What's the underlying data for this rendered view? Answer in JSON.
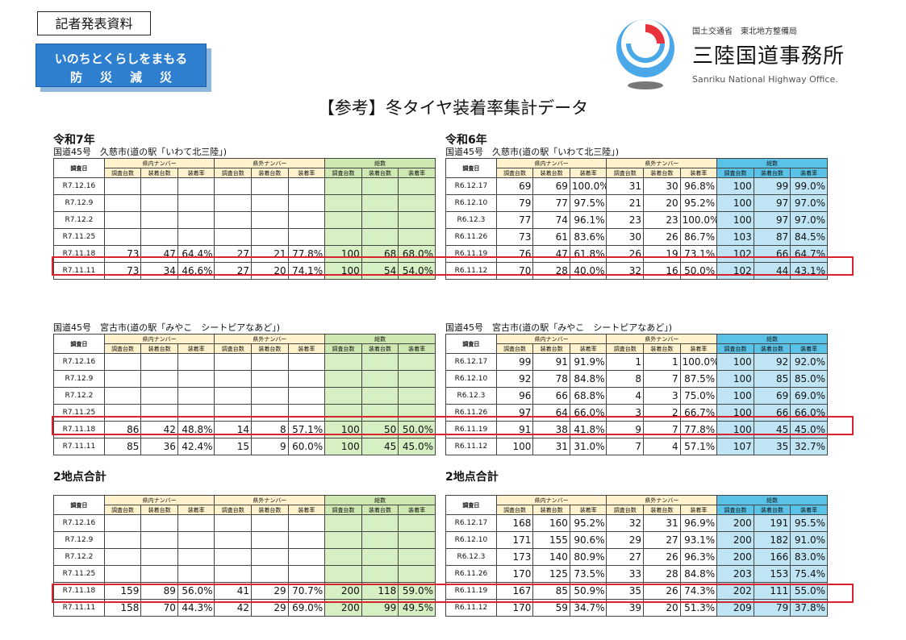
{
  "header": {
    "press_label": "記者発表資料",
    "slogan_line1": "いのちとくらしをまもる",
    "slogan_line2": "防災減災",
    "ministry": "国土交通省　東北地方整備局",
    "office_jp": "三陸国道事務所",
    "office_en": "Sanriku National Highway Office.",
    "doc_title": "【参考】冬タイヤ装着率集計データ"
  },
  "columns": {
    "survey_day": "調査日",
    "group_in": "県内ナンバー",
    "group_out": "県外ナンバー",
    "group_total": "総数",
    "surveyed": "調査台数",
    "equipped": "装着台数",
    "rate": "装着率"
  },
  "colors": {
    "highlight": "#d9232e",
    "total_green": "#d6f0c4",
    "total_blue": "#bfe5f4"
  },
  "tables": [
    {
      "title": "令和7年",
      "location": "国道45号　久慈市(道の駅「いわて北三陸」)",
      "theme": "green",
      "rows": [
        [
          "R7.12.16",
          "",
          "",
          "",
          "",
          "",
          "",
          "",
          "",
          ""
        ],
        [
          "R7.12.9",
          "",
          "",
          "",
          "",
          "",
          "",
          "",
          "",
          ""
        ],
        [
          "R7.12.2",
          "",
          "",
          "",
          "",
          "",
          "",
          "",
          "",
          ""
        ],
        [
          "R7.11.25",
          "",
          "",
          "",
          "",
          "",
          "",
          "",
          "",
          ""
        ],
        [
          "R7.11.18",
          "73",
          "47",
          "64.4%",
          "27",
          "21",
          "77.8%",
          "100",
          "68",
          "68.0%"
        ],
        [
          "R7.11.11",
          "73",
          "34",
          "46.6%",
          "27",
          "20",
          "74.1%",
          "100",
          "54",
          "54.0%"
        ]
      ]
    },
    {
      "title": "令和6年",
      "location": "国道45号　久慈市(道の駅「いわて北三陸」)",
      "theme": "blue",
      "rows": [
        [
          "R6.12.17",
          "69",
          "69",
          "100.0%",
          "31",
          "30",
          "96.8%",
          "100",
          "99",
          "99.0%"
        ],
        [
          "R6.12.10",
          "79",
          "77",
          "97.5%",
          "21",
          "20",
          "95.2%",
          "100",
          "97",
          "97.0%"
        ],
        [
          "R6.12.3",
          "77",
          "74",
          "96.1%",
          "23",
          "23",
          "100.0%",
          "100",
          "97",
          "97.0%"
        ],
        [
          "R6.11.26",
          "73",
          "61",
          "83.6%",
          "30",
          "26",
          "86.7%",
          "103",
          "87",
          "84.5%"
        ],
        [
          "R6.11.19",
          "76",
          "47",
          "61.8%",
          "26",
          "19",
          "73.1%",
          "102",
          "66",
          "64.7%"
        ],
        [
          "R6.11.12",
          "70",
          "28",
          "40.0%",
          "32",
          "16",
          "50.0%",
          "102",
          "44",
          "43.1%"
        ]
      ]
    },
    {
      "title": "",
      "location": "国道45号　宮古市(道の駅「みやこ　シートピアなあど」)",
      "theme": "green",
      "rows": [
        [
          "R7.12.16",
          "",
          "",
          "",
          "",
          "",
          "",
          "",
          "",
          ""
        ],
        [
          "R7.12.9",
          "",
          "",
          "",
          "",
          "",
          "",
          "",
          "",
          ""
        ],
        [
          "R7.12.2",
          "",
          "",
          "",
          "",
          "",
          "",
          "",
          "",
          ""
        ],
        [
          "R7.11.25",
          "",
          "",
          "",
          "",
          "",
          "",
          "",
          "",
          ""
        ],
        [
          "R7.11.18",
          "86",
          "42",
          "48.8%",
          "14",
          "8",
          "57.1%",
          "100",
          "50",
          "50.0%"
        ],
        [
          "R7.11.11",
          "85",
          "36",
          "42.4%",
          "15",
          "9",
          "60.0%",
          "100",
          "45",
          "45.0%"
        ]
      ]
    },
    {
      "title": "",
      "location": "国道45号　宮古市(道の駅「みやこ　シートピアなあど」)",
      "theme": "blue",
      "rows": [
        [
          "R6.12.17",
          "99",
          "91",
          "91.9%",
          "1",
          "1",
          "100.0%",
          "100",
          "92",
          "92.0%"
        ],
        [
          "R6.12.10",
          "92",
          "78",
          "84.8%",
          "8",
          "7",
          "87.5%",
          "100",
          "85",
          "85.0%"
        ],
        [
          "R6.12.3",
          "96",
          "66",
          "68.8%",
          "4",
          "3",
          "75.0%",
          "100",
          "69",
          "69.0%"
        ],
        [
          "R6.11.26",
          "97",
          "64",
          "66.0%",
          "3",
          "2",
          "66.7%",
          "100",
          "66",
          "66.0%"
        ],
        [
          "R6.11.19",
          "91",
          "38",
          "41.8%",
          "9",
          "7",
          "77.8%",
          "100",
          "45",
          "45.0%"
        ],
        [
          "R6.11.12",
          "100",
          "31",
          "31.0%",
          "7",
          "4",
          "57.1%",
          "107",
          "35",
          "32.7%"
        ]
      ]
    },
    {
      "title": "2地点合計",
      "location": "",
      "theme": "green",
      "rows": [
        [
          "R7.12.16",
          "",
          "",
          "",
          "",
          "",
          "",
          "",
          "",
          ""
        ],
        [
          "R7.12.9",
          "",
          "",
          "",
          "",
          "",
          "",
          "",
          "",
          ""
        ],
        [
          "R7.12.2",
          "",
          "",
          "",
          "",
          "",
          "",
          "",
          "",
          ""
        ],
        [
          "R7.11.25",
          "",
          "",
          "",
          "",
          "",
          "",
          "",
          "",
          ""
        ],
        [
          "R7.11.18",
          "159",
          "89",
          "56.0%",
          "41",
          "29",
          "70.7%",
          "200",
          "118",
          "59.0%"
        ],
        [
          "R7.11.11",
          "158",
          "70",
          "44.3%",
          "42",
          "29",
          "69.0%",
          "200",
          "99",
          "49.5%"
        ]
      ]
    },
    {
      "title": "2地点合計",
      "location": "",
      "theme": "blue",
      "rows": [
        [
          "R6.12.17",
          "168",
          "160",
          "95.2%",
          "32",
          "31",
          "96.9%",
          "200",
          "191",
          "95.5%"
        ],
        [
          "R6.12.10",
          "171",
          "155",
          "90.6%",
          "29",
          "27",
          "93.1%",
          "200",
          "182",
          "91.0%"
        ],
        [
          "R6.12.3",
          "173",
          "140",
          "80.9%",
          "27",
          "26",
          "96.3%",
          "200",
          "166",
          "83.0%"
        ],
        [
          "R6.11.26",
          "170",
          "125",
          "73.5%",
          "33",
          "28",
          "84.8%",
          "203",
          "153",
          "75.4%"
        ],
        [
          "R6.11.19",
          "167",
          "85",
          "50.9%",
          "35",
          "26",
          "74.3%",
          "202",
          "111",
          "55.0%"
        ],
        [
          "R6.11.12",
          "170",
          "59",
          "34.7%",
          "39",
          "20",
          "51.3%",
          "209",
          "79",
          "37.8%"
        ]
      ]
    }
  ]
}
